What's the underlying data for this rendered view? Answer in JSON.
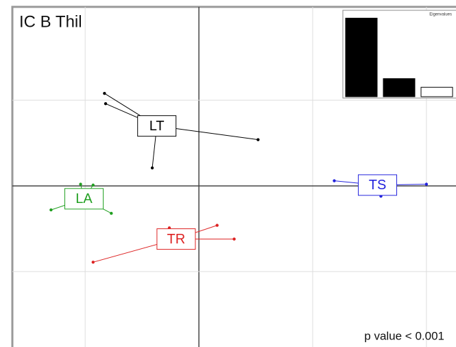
{
  "chart_data": [
    {
      "type": "scatter",
      "title": "IC B Thil",
      "annotation": "p value < 0.001",
      "xlim": [
        -1.64,
        2.26
      ],
      "ylim": [
        -1.88,
        2.09
      ],
      "xticks": [
        -1,
        0,
        1,
        2
      ],
      "yticks": [
        -1,
        0,
        1
      ],
      "grid": true,
      "series": [
        {
          "name": "LT",
          "color": "#000000",
          "center_x": -0.37,
          "center_y": 0.7,
          "x": [
            -0.83,
            -0.82,
            0.52,
            -0.41
          ],
          "y": [
            1.08,
            0.96,
            0.54,
            0.21
          ]
        },
        {
          "name": "LA",
          "color": "#22a022",
          "center_x": -1.01,
          "center_y": -0.15,
          "x": [
            -1.04,
            -0.93,
            -1.3,
            -0.77
          ],
          "y": [
            0.02,
            0.01,
            -0.28,
            -0.32
          ]
        },
        {
          "name": "TS",
          "color": "#2222dd",
          "center_x": 1.57,
          "center_y": 0.01,
          "x": [
            1.19,
            2.0,
            1.6
          ],
          "y": [
            0.06,
            0.02,
            -0.12
          ]
        },
        {
          "name": "TR",
          "color": "#dd2222",
          "center_x": -0.2,
          "center_y": -0.62,
          "x": [
            -0.93,
            0.16,
            0.31,
            -0.26
          ],
          "y": [
            -0.89,
            -0.46,
            -0.62,
            -0.49
          ]
        }
      ]
    },
    {
      "type": "bar",
      "title": "Eigenvalues",
      "values": [
        1,
        0.23,
        0.12
      ],
      "colors": [
        "#000000",
        "#000000",
        "#ffffff"
      ],
      "ylim": [
        0,
        1.1
      ]
    }
  ]
}
